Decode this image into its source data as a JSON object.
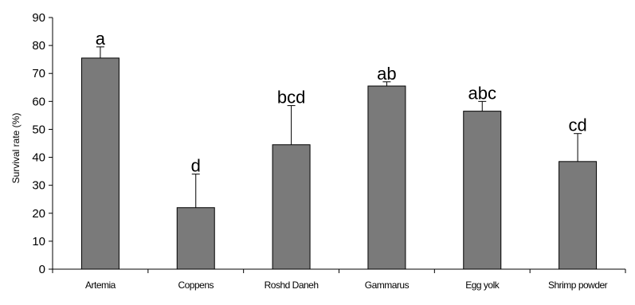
{
  "chart_data": {
    "type": "bar",
    "title": "",
    "xlabel": "",
    "ylabel": "Survival rate (%)",
    "ylim": [
      0,
      90
    ],
    "yticks": [
      0,
      10,
      20,
      30,
      40,
      50,
      60,
      70,
      80,
      90
    ],
    "grid": false,
    "legend": false,
    "colors": {
      "bar": "#7a7a7a",
      "bar_stroke": "#000000",
      "axis": "#000000"
    },
    "categories": [
      "Artemia",
      "Coppens",
      "Roshd Daneh",
      "Gammarus",
      "Egg yolk",
      "Shrimp powder"
    ],
    "values": [
      75.5,
      22,
      44.5,
      65.5,
      56.5,
      38.5
    ],
    "error_upper": [
      79.5,
      34,
      58.5,
      67,
      60,
      48.5
    ],
    "significance_labels": [
      "a",
      "d",
      "bcd",
      "ab",
      "abc",
      "cd"
    ]
  }
}
